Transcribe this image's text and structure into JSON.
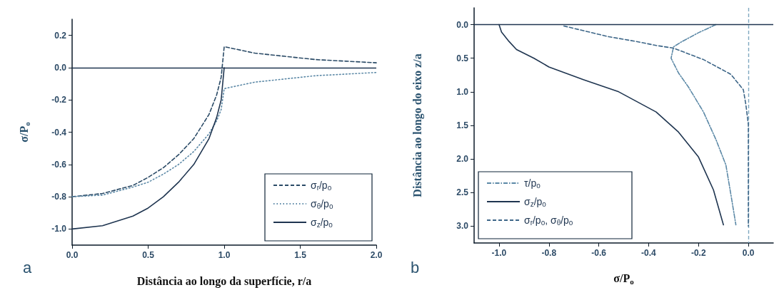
{
  "chart_data": [
    {
      "type": "line",
      "xlabel": "Distância ao longo da superfície, r/a",
      "ylabel": "σ/P$_{o}$",
      "annotations": [
        "a"
      ],
      "x": [
        0,
        0.2,
        0.4,
        0.5,
        0.6,
        0.7,
        0.8,
        0.9,
        0.95,
        0.98,
        1.0,
        1.2,
        1.4,
        1.6,
        1.8,
        2.0
      ],
      "series": [
        {
          "name": "σ$_{r}$/p$_{o}$",
          "color": "#2a4a66",
          "line_style": "dashed",
          "values": [
            -0.8,
            -0.78,
            -0.73,
            -0.68,
            -0.62,
            -0.54,
            -0.44,
            -0.29,
            -0.17,
            -0.06,
            0.13,
            0.09,
            0.07,
            0.05,
            0.04,
            0.03
          ]
        },
        {
          "name": "σ$_{θ}$/p$_{o}$",
          "color": "#5b88a6",
          "line_style": "dotted",
          "values": [
            -0.8,
            -0.79,
            -0.74,
            -0.71,
            -0.66,
            -0.6,
            -0.52,
            -0.41,
            -0.33,
            -0.26,
            -0.13,
            -0.09,
            -0.07,
            -0.05,
            -0.04,
            -0.03
          ]
        },
        {
          "name": "σ$_{z}$/p$_{o}$",
          "color": "#1f3550",
          "line_style": "solid",
          "values": [
            -1.0,
            -0.98,
            -0.92,
            -0.87,
            -0.8,
            -0.71,
            -0.6,
            -0.44,
            -0.31,
            -0.2,
            0,
            null,
            null,
            null,
            null,
            null
          ]
        }
      ],
      "xlim": [
        0,
        2
      ],
      "xticks": [
        {
          "value": 0,
          "label": "0.0"
        },
        {
          "value": 0.5,
          "label": "0.5"
        },
        {
          "value": 1,
          "label": "1.0"
        },
        {
          "value": 1.5,
          "label": "1.5"
        },
        {
          "value": 2,
          "label": "2.0"
        }
      ],
      "ylim": [
        -1.1,
        0.3
      ],
      "yticks": [
        {
          "value": -1,
          "label": "-1.0"
        },
        {
          "value": -0.8,
          "label": "-0.8"
        },
        {
          "value": -0.6,
          "label": "-0.6"
        },
        {
          "value": -0.4,
          "label": "-0.4"
        },
        {
          "value": -0.2,
          "label": "-0.2"
        },
        {
          "value": 0,
          "label": "0.0"
        },
        {
          "value": 0.2,
          "label": "0.2"
        }
      ],
      "ref_lines": [
        {
          "axis": "y",
          "value": 0,
          "color": "#1f3550",
          "line_style": "solid"
        }
      ],
      "legend": "bottom right",
      "marker": "none",
      "grid": false
    },
    {
      "type": "line",
      "xlabel": "σ/P$_{o}$",
      "ylabel": "Distância ao longo do eixo z/a",
      "annotations": [
        "b"
      ],
      "series": [
        {
          "name": "τ/p$_{o}$",
          "color": "#5b88a6",
          "line_style": "dashdot",
          "x": [
            -0.13,
            -0.2,
            -0.27,
            -0.3,
            -0.31,
            -0.28,
            -0.24,
            -0.18,
            -0.13,
            -0.09,
            -0.07,
            -0.05
          ],
          "values": [
            0,
            0.12,
            0.26,
            0.33,
            0.5,
            0.72,
            0.93,
            1.3,
            1.71,
            2.09,
            2.53,
            2.98
          ]
        },
        {
          "name": "σ$_{z}$/p$_{o}$",
          "color": "#1f3550",
          "line_style": "solid",
          "x": [
            -1.0,
            -0.99,
            -0.96,
            -0.93,
            -0.86,
            -0.8,
            -0.66,
            -0.52,
            -0.37,
            -0.28,
            -0.2,
            -0.14,
            -0.1
          ],
          "values": [
            0,
            0.11,
            0.25,
            0.37,
            0.5,
            0.63,
            0.82,
            1.0,
            1.3,
            1.6,
            1.97,
            2.46,
            2.98
          ]
        },
        {
          "name": "σ$_{r}$/p$_{o}$, σ$_{θ}$/p$_{o}$",
          "color": "#3d6688",
          "line_style": "dashed",
          "x": [
            -0.74,
            -0.56,
            -0.45,
            -0.37,
            -0.3,
            -0.18,
            -0.07,
            -0.02,
            -0.01,
            0,
            0,
            0
          ],
          "values": [
            0.02,
            0.18,
            0.25,
            0.31,
            0.35,
            0.52,
            0.74,
            0.97,
            1.19,
            1.49,
            2.2,
            3.0
          ]
        }
      ],
      "xlim": [
        -1.1,
        0.1
      ],
      "xticks": [
        {
          "value": -1,
          "label": "-1.0"
        },
        {
          "value": -0.8,
          "label": "-0.8"
        },
        {
          "value": -0.6,
          "label": "-0.6"
        },
        {
          "value": -0.4,
          "label": "-0.4"
        },
        {
          "value": -0.2,
          "label": "-0.2"
        },
        {
          "value": 0,
          "label": "0.0"
        }
      ],
      "ylim": [
        3.25,
        -0.25
      ],
      "yticks": [
        {
          "value": 0,
          "label": "0.0"
        },
        {
          "value": 0.5,
          "label": "0.5"
        },
        {
          "value": 1,
          "label": "1.0"
        },
        {
          "value": 1.5,
          "label": "1.5"
        },
        {
          "value": 2,
          "label": "2.0"
        },
        {
          "value": 2.5,
          "label": "2.5"
        },
        {
          "value": 3,
          "label": "3.0"
        }
      ],
      "ref_lines": [
        {
          "axis": "y",
          "value": 0,
          "color": "#1f3550",
          "line_style": "solid"
        },
        {
          "axis": "x",
          "value": 0,
          "color": "#7fa8c0",
          "line_style": "dashed"
        }
      ],
      "legend": "bottom left",
      "marker": "none",
      "grid": false
    }
  ]
}
